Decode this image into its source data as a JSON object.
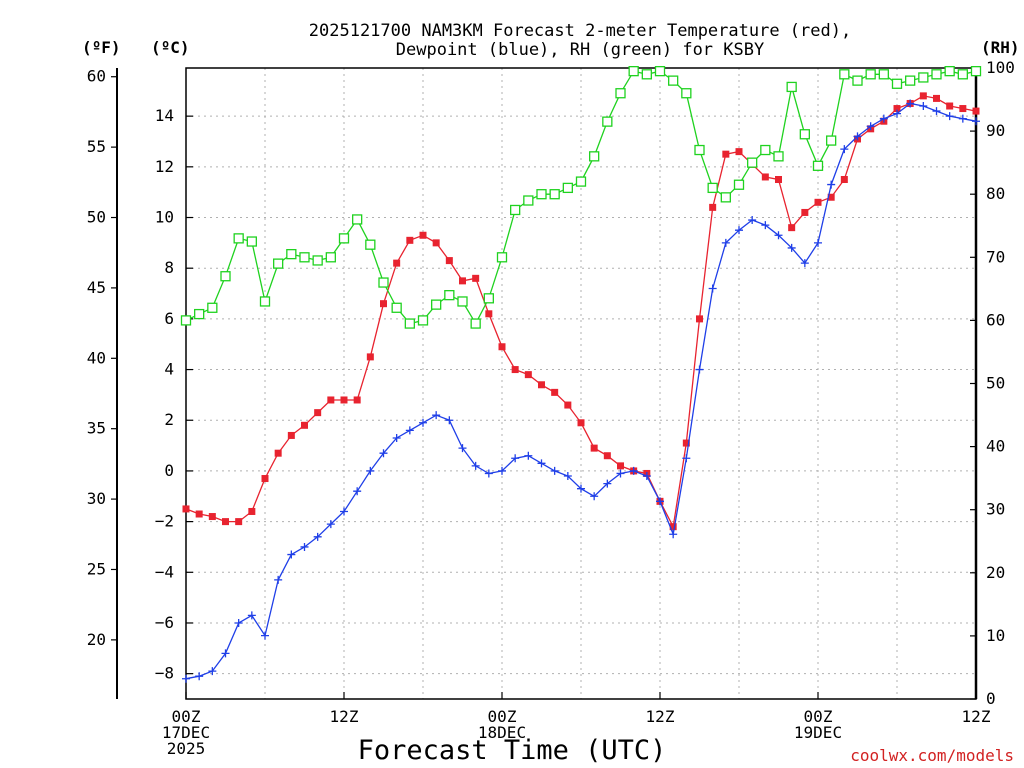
{
  "chart_data": {
    "type": "line",
    "title_lines": [
      "2025121700 NAM3KM Forecast 2-meter Temperature (red),",
      "Dewpoint (blue), RH (green) for KSBY"
    ],
    "xlabel": "Forecast Time (UTC)",
    "credit": "coolwx.com/models",
    "x_range_hours": [
      0,
      60
    ],
    "y_left_celsius": {
      "label": "(ºC)",
      "range": [
        -9.0,
        15.9
      ],
      "ticks": [
        -8,
        -6,
        -4,
        -2,
        0,
        2,
        4,
        6,
        8,
        10,
        12,
        14
      ],
      "tick_labels": [
        "−8",
        "−6",
        "−4",
        "−2",
        "0",
        "2",
        "4",
        "6",
        "8",
        "10",
        "12",
        "14"
      ]
    },
    "y_outer_fahrenheit": {
      "label": "(ºF)",
      "ticks": [
        20,
        25,
        30,
        35,
        40,
        45,
        50,
        55,
        60
      ],
      "tick_labels": [
        "20",
        "25",
        "30",
        "35",
        "40",
        "45",
        "50",
        "55",
        "60"
      ]
    },
    "y_right_rh": {
      "label": "(RH)",
      "range": [
        0,
        100
      ],
      "ticks": [
        0,
        10,
        20,
        30,
        40,
        50,
        60,
        70,
        80,
        90,
        100
      ],
      "tick_labels": [
        "0",
        "10",
        "20",
        "30",
        "40",
        "50",
        "60",
        "70",
        "80",
        "90",
        "100"
      ]
    },
    "x_ticks": [
      {
        "hour": 0,
        "lines": [
          "00Z",
          "17DEC",
          "2025"
        ]
      },
      {
        "hour": 12,
        "lines": [
          "12Z"
        ]
      },
      {
        "hour": 24,
        "lines": [
          "00Z",
          "18DEC"
        ]
      },
      {
        "hour": 36,
        "lines": [
          "12Z"
        ]
      },
      {
        "hour": 48,
        "lines": [
          "00Z",
          "19DEC"
        ]
      },
      {
        "hour": 60,
        "lines": [
          "12Z"
        ]
      }
    ],
    "x_hours": [
      0,
      1,
      2,
      3,
      4,
      5,
      6,
      7,
      8,
      9,
      10,
      11,
      12,
      13,
      14,
      15,
      16,
      17,
      18,
      19,
      20,
      21,
      22,
      23,
      24,
      25,
      26,
      27,
      28,
      29,
      30,
      31,
      32,
      33,
      34,
      35,
      36,
      37,
      38,
      39,
      40,
      41,
      42,
      43,
      44,
      45,
      46,
      47,
      48,
      49,
      50,
      51,
      52,
      53,
      54,
      55,
      56,
      57,
      58,
      59,
      60
    ],
    "series": [
      {
        "name": "Temperature",
        "axis": "celsius",
        "color": "#e8232f",
        "marker": "filled-square",
        "values": [
          -1.5,
          -1.7,
          -1.8,
          -2.0,
          -2.0,
          -1.6,
          -0.3,
          0.7,
          1.4,
          1.8,
          2.3,
          2.8,
          2.8,
          2.8,
          4.5,
          6.6,
          8.2,
          9.1,
          9.3,
          9.0,
          8.3,
          7.5,
          7.6,
          6.2,
          4.9,
          4.0,
          3.8,
          3.4,
          3.1,
          2.6,
          1.9,
          0.9,
          0.6,
          0.2,
          0.0,
          -0.1,
          -1.2,
          -2.2,
          1.1,
          6.0,
          10.4,
          12.5,
          12.6,
          12.1,
          11.6,
          11.5,
          9.6,
          10.2,
          10.6,
          10.8,
          11.5,
          13.1,
          13.5,
          13.8,
          14.3,
          14.5,
          14.8,
          14.7,
          14.4,
          14.3,
          14.2
        ]
      },
      {
        "name": "Dewpoint",
        "axis": "celsius",
        "color": "#1f3fe8",
        "marker": "plus",
        "values": [
          -8.2,
          -8.1,
          -7.9,
          -7.2,
          -6.0,
          -5.7,
          -6.5,
          -4.3,
          -3.3,
          -3.0,
          -2.6,
          -2.1,
          -1.6,
          -0.8,
          0.0,
          0.7,
          1.3,
          1.6,
          1.9,
          2.2,
          2.0,
          0.9,
          0.2,
          -0.1,
          0.0,
          0.5,
          0.6,
          0.3,
          0.0,
          -0.2,
          -0.7,
          -1.0,
          -0.5,
          -0.1,
          0.0,
          -0.2,
          -1.2,
          -2.5,
          0.5,
          4.0,
          7.2,
          9.0,
          9.5,
          9.9,
          9.7,
          9.3,
          8.8,
          8.2,
          9.0,
          11.3,
          12.7,
          13.2,
          13.6,
          13.9,
          14.1,
          14.5,
          14.4,
          14.2,
          14.0,
          13.9,
          13.8
        ]
      },
      {
        "name": "RH",
        "axis": "rh",
        "color": "#1fd21f",
        "marker": "open-square",
        "values": [
          60,
          61,
          62,
          67,
          73,
          72.5,
          63,
          69,
          70.5,
          70,
          69.5,
          70,
          73,
          76,
          72,
          66,
          62,
          59.5,
          60,
          62.5,
          64,
          63,
          59.5,
          63.5,
          70,
          77.5,
          79,
          80,
          80,
          81,
          82,
          86,
          91.5,
          96,
          99.5,
          99,
          99.5,
          98,
          96,
          87,
          81,
          79.5,
          81.5,
          85,
          87,
          86,
          97,
          89.5,
          84.5,
          88.5,
          99,
          98,
          99,
          99,
          97.5,
          98,
          98.5,
          99,
          99.5,
          99,
          99.5
        ]
      }
    ]
  }
}
